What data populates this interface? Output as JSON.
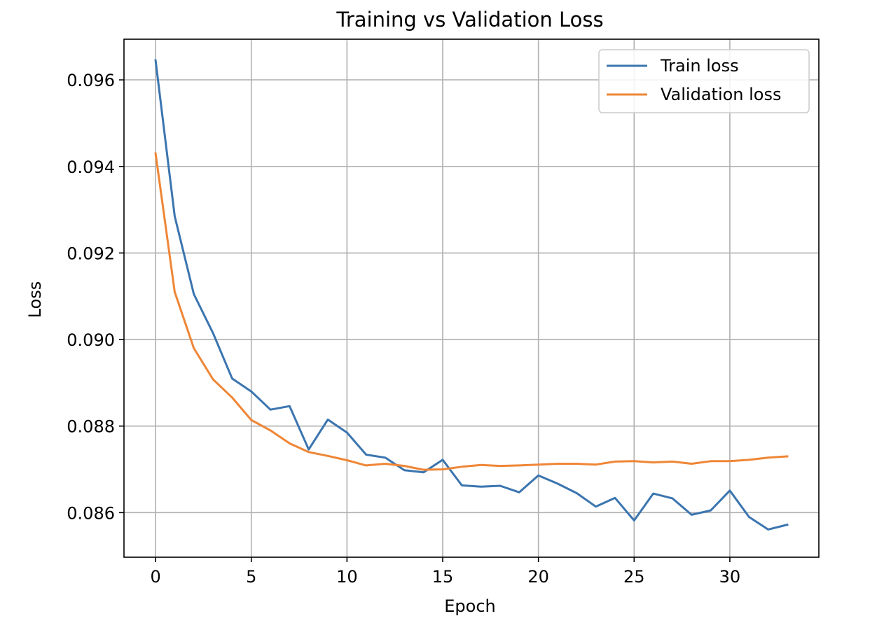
{
  "chart_data": {
    "type": "line",
    "title": "Training vs Validation Loss",
    "xlabel": "Epoch",
    "ylabel": "Loss",
    "xlim": [
      -1.65,
      34.65
    ],
    "ylim": [
      0.08497,
      0.09694
    ],
    "xticks": [
      0,
      5,
      10,
      15,
      20,
      25,
      30
    ],
    "xtick_labels": [
      "0",
      "5",
      "10",
      "15",
      "20",
      "25",
      "30"
    ],
    "yticks": [
      0.086,
      0.088,
      0.09,
      0.092,
      0.094,
      0.096
    ],
    "ytick_labels": [
      "0.086",
      "0.088",
      "0.090",
      "0.092",
      "0.094",
      "0.096"
    ],
    "grid": true,
    "legend_position": "top-right",
    "x": [
      0,
      1,
      2,
      3,
      4,
      5,
      6,
      7,
      8,
      9,
      10,
      11,
      12,
      13,
      14,
      15,
      16,
      17,
      18,
      19,
      20,
      21,
      22,
      23,
      24,
      25,
      26,
      27,
      28,
      29,
      30,
      31,
      32,
      33
    ],
    "series": [
      {
        "name": "Train loss",
        "color": "#3b75af",
        "values": [
          0.09645,
          0.09285,
          0.09105,
          0.09015,
          0.0891,
          0.0888,
          0.08838,
          0.08846,
          0.08746,
          0.08815,
          0.08785,
          0.08734,
          0.08727,
          0.08698,
          0.08693,
          0.08722,
          0.08663,
          0.0866,
          0.08662,
          0.08647,
          0.08686,
          0.08667,
          0.08645,
          0.08614,
          0.08634,
          0.08582,
          0.08644,
          0.08633,
          0.08595,
          0.08605,
          0.08651,
          0.0859,
          0.08561,
          0.08572
        ]
      },
      {
        "name": "Validation loss",
        "color": "#ef8636",
        "values": [
          0.0943,
          0.0911,
          0.0898,
          0.08908,
          0.08866,
          0.08814,
          0.0879,
          0.0876,
          0.0874,
          0.08731,
          0.08721,
          0.08709,
          0.08713,
          0.08708,
          0.08699,
          0.087,
          0.08706,
          0.0871,
          0.08708,
          0.08709,
          0.08711,
          0.08713,
          0.08713,
          0.08711,
          0.08718,
          0.08719,
          0.08716,
          0.08718,
          0.08713,
          0.08719,
          0.08719,
          0.08722,
          0.08727,
          0.0873
        ]
      }
    ]
  }
}
